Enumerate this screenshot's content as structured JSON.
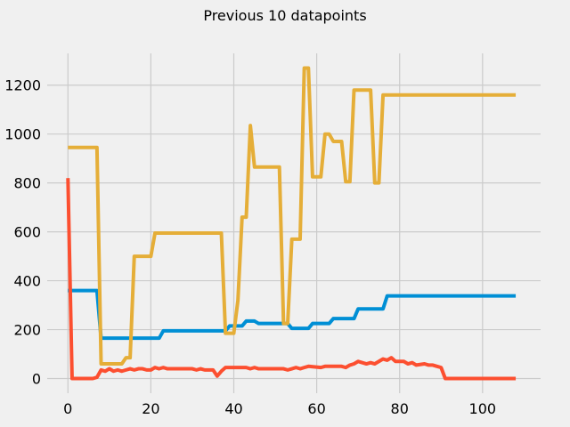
{
  "chart_data": {
    "type": "line",
    "title": "Previous 10 datapoints",
    "xlabel": "",
    "ylabel": "",
    "xlim": [
      -5,
      114
    ],
    "ylim": [
      -60,
      1330
    ],
    "xticks": [
      0,
      20,
      40,
      60,
      80,
      100
    ],
    "yticks": [
      0,
      200,
      400,
      600,
      800,
      1000,
      1200
    ],
    "grid": true,
    "series": [
      {
        "color": "#008fd5",
        "points": [
          [
            0,
            360
          ],
          [
            7,
            360
          ],
          [
            8,
            165
          ],
          [
            22,
            165
          ],
          [
            23,
            195
          ],
          [
            38,
            195
          ],
          [
            39,
            215
          ],
          [
            42,
            215
          ],
          [
            43,
            235
          ],
          [
            45,
            235
          ],
          [
            46,
            225
          ],
          [
            53,
            225
          ],
          [
            54,
            205
          ],
          [
            58,
            205
          ],
          [
            59,
            225
          ],
          [
            63,
            225
          ],
          [
            64,
            245
          ],
          [
            69,
            245
          ],
          [
            70,
            285
          ],
          [
            76,
            285
          ],
          [
            77,
            338
          ],
          [
            108,
            338
          ]
        ]
      },
      {
        "color": "#e5ae38",
        "points": [
          [
            0,
            945
          ],
          [
            7,
            945
          ],
          [
            8,
            60
          ],
          [
            13,
            60
          ],
          [
            14,
            85
          ],
          [
            15,
            85
          ],
          [
            16,
            500
          ],
          [
            20,
            500
          ],
          [
            21,
            595
          ],
          [
            37,
            595
          ],
          [
            38,
            185
          ],
          [
            40,
            185
          ],
          [
            41,
            320
          ],
          [
            42,
            660
          ],
          [
            43,
            660
          ],
          [
            44,
            1035
          ],
          [
            45,
            865
          ],
          [
            51,
            865
          ],
          [
            52,
            225
          ],
          [
            53,
            225
          ],
          [
            54,
            570
          ],
          [
            56,
            570
          ],
          [
            57,
            1270
          ],
          [
            58,
            1270
          ],
          [
            59,
            825
          ],
          [
            61,
            825
          ],
          [
            62,
            1000
          ],
          [
            63,
            1000
          ],
          [
            64,
            970
          ],
          [
            66,
            970
          ],
          [
            67,
            805
          ],
          [
            68,
            805
          ],
          [
            69,
            1180
          ],
          [
            73,
            1180
          ],
          [
            74,
            800
          ],
          [
            75,
            800
          ],
          [
            76,
            1160
          ],
          [
            108,
            1160
          ]
        ]
      },
      {
        "color": "#fc4f30",
        "points": [
          [
            0,
            820
          ],
          [
            1,
            0
          ],
          [
            6,
            0
          ],
          [
            7,
            5
          ],
          [
            8,
            35
          ],
          [
            9,
            30
          ],
          [
            10,
            40
          ],
          [
            11,
            30
          ],
          [
            12,
            35
          ],
          [
            13,
            30
          ],
          [
            14,
            35
          ],
          [
            15,
            40
          ],
          [
            16,
            35
          ],
          [
            17,
            40
          ],
          [
            18,
            40
          ],
          [
            19,
            35
          ],
          [
            20,
            35
          ],
          [
            21,
            45
          ],
          [
            22,
            40
          ],
          [
            23,
            45
          ],
          [
            24,
            40
          ],
          [
            30,
            40
          ],
          [
            31,
            35
          ],
          [
            32,
            40
          ],
          [
            33,
            35
          ],
          [
            35,
            35
          ],
          [
            36,
            10
          ],
          [
            37,
            30
          ],
          [
            38,
            45
          ],
          [
            43,
            45
          ],
          [
            44,
            40
          ],
          [
            45,
            45
          ],
          [
            46,
            40
          ],
          [
            52,
            40
          ],
          [
            53,
            35
          ],
          [
            54,
            40
          ],
          [
            55,
            45
          ],
          [
            56,
            40
          ],
          [
            57,
            45
          ],
          [
            58,
            50
          ],
          [
            61,
            45
          ],
          [
            62,
            50
          ],
          [
            66,
            50
          ],
          [
            67,
            45
          ],
          [
            68,
            55
          ],
          [
            69,
            60
          ],
          [
            70,
            70
          ],
          [
            71,
            65
          ],
          [
            72,
            60
          ],
          [
            73,
            65
          ],
          [
            74,
            60
          ],
          [
            75,
            70
          ],
          [
            76,
            80
          ],
          [
            77,
            75
          ],
          [
            78,
            85
          ],
          [
            79,
            70
          ],
          [
            81,
            70
          ],
          [
            82,
            60
          ],
          [
            83,
            65
          ],
          [
            84,
            55
          ],
          [
            86,
            60
          ],
          [
            87,
            55
          ],
          [
            88,
            55
          ],
          [
            89,
            50
          ],
          [
            90,
            45
          ],
          [
            91,
            0
          ],
          [
            108,
            0
          ]
        ]
      }
    ]
  }
}
